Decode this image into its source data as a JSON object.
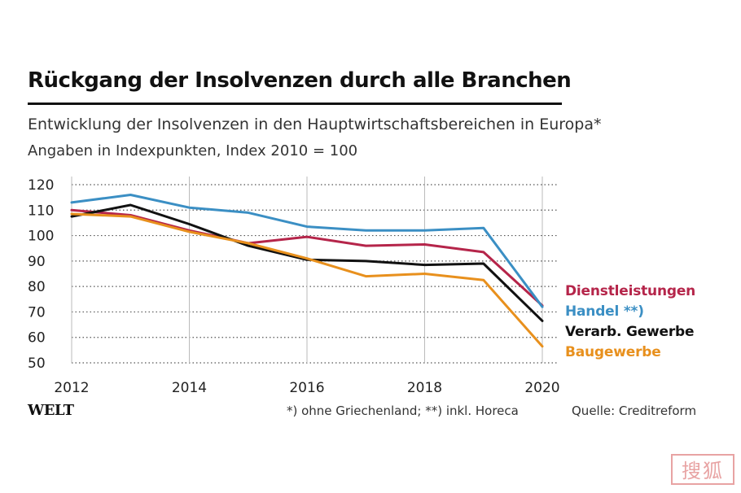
{
  "title": "Rückgang der Insolvenzen durch alle Branchen",
  "subtitle": "Entwicklung der Insolvenzen in den Hauptwirtschaftsbereichen in Europa*",
  "unit_note": "Angaben in Indexpunkten, Index 2010 = 100",
  "footnote": "*) ohne Griechenland; **) inkl. Horeca",
  "source": "Quelle: Creditreform",
  "logo_text": "WELT",
  "watermark_text": "搜狐",
  "chart_data": {
    "type": "line",
    "x": [
      2012,
      2013,
      2014,
      2015,
      2016,
      2017,
      2018,
      2019,
      2020
    ],
    "x_tick_labels": [
      "2012",
      "2014",
      "2016",
      "2018",
      "2020"
    ],
    "y_tick_labels": [
      "120",
      "110",
      "100",
      "90",
      "80",
      "70",
      "60",
      "50"
    ],
    "ylim": [
      50,
      120
    ],
    "xlim": [
      2012,
      2020
    ],
    "grid": "horizontal dotted; vertical solid at labeled years",
    "legend_position": "right",
    "series": [
      {
        "name": "Dienstleistungen",
        "color": "#b5254a",
        "values": [
          110,
          108,
          102,
          97,
          99.5,
          96,
          96.5,
          93.5,
          72.5
        ]
      },
      {
        "name": "Handel **)",
        "color": "#3b8fc4",
        "values": [
          113,
          116,
          111,
          109,
          103.5,
          102,
          102,
          103,
          72
        ]
      },
      {
        "name": "Verarb. Gewerbe",
        "color": "#111111",
        "values": [
          107.5,
          112,
          104.5,
          96,
          90.5,
          90,
          88.5,
          89,
          66.5
        ]
      },
      {
        "name": "Baugewerbe",
        "color": "#e8901d",
        "values": [
          108.5,
          107.5,
          101.5,
          97,
          91,
          84,
          85,
          82.5,
          56.5
        ]
      }
    ]
  }
}
